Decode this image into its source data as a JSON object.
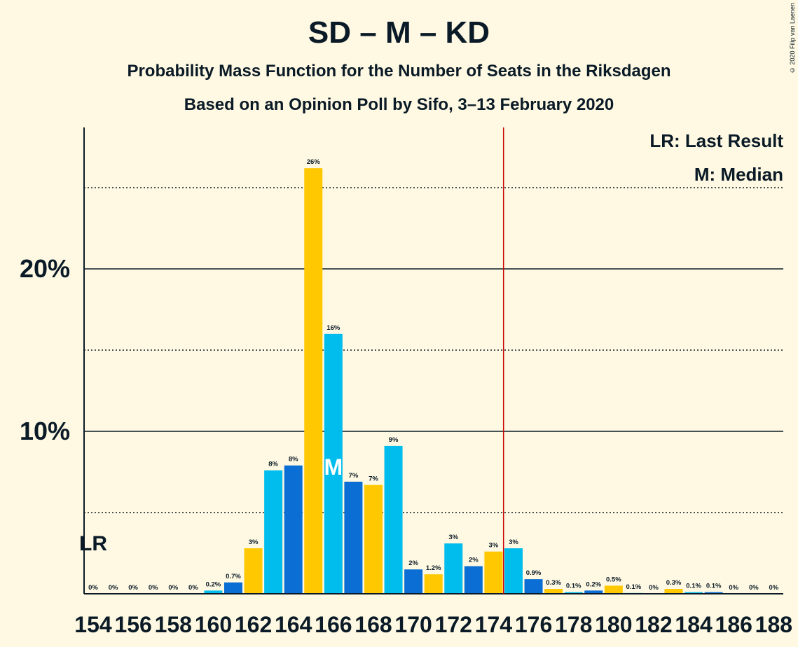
{
  "chart_data": {
    "type": "bar",
    "title": "SD – M – KD",
    "subtitle": "Probability Mass Function for the Number of Seats in the Riksdagen",
    "subtitle2": "Based on an Opinion Poll by Sifo, 3–13 February 2020",
    "copyright": "© 2020 Filip van Laenen",
    "legend": [
      "LR: Last Result",
      "M: Median"
    ],
    "last_result_label": "LR",
    "median_label": "M",
    "last_result_seat": 154,
    "median_seat": 166,
    "majority_seat": 174.5,
    "ylim": [
      0,
      28.5
    ],
    "y_ticks": [
      "10%",
      "20%"
    ],
    "x_tick_labels": [
      "154",
      "156",
      "158",
      "160",
      "162",
      "164",
      "166",
      "168",
      "170",
      "172",
      "174",
      "176",
      "178",
      "180",
      "182",
      "184",
      "186",
      "188"
    ],
    "colors": {
      "cyan": "#00BDED",
      "blue": "#0A6ED4",
      "yellow": "#FFC800",
      "majority_line": "#CC0000"
    },
    "bars": [
      {
        "seat": 154,
        "value": 0,
        "label": "0%",
        "color": "cyan"
      },
      {
        "seat": 155,
        "value": 0,
        "label": "0%",
        "color": "blue"
      },
      {
        "seat": 156,
        "value": 0,
        "label": "0%",
        "color": "yellow"
      },
      {
        "seat": 157,
        "value": 0,
        "label": "0%",
        "color": "cyan"
      },
      {
        "seat": 158,
        "value": 0,
        "label": "0%",
        "color": "blue"
      },
      {
        "seat": 159,
        "value": 0,
        "label": "0%",
        "color": "yellow"
      },
      {
        "seat": 160,
        "value": 0.2,
        "label": "0.2%",
        "color": "cyan"
      },
      {
        "seat": 161,
        "value": 0.7,
        "label": "0.7%",
        "color": "blue"
      },
      {
        "seat": 162,
        "value": 2.8,
        "label": "3%",
        "color": "yellow"
      },
      {
        "seat": 163,
        "value": 7.6,
        "label": "8%",
        "color": "cyan"
      },
      {
        "seat": 164,
        "value": 7.9,
        "label": "8%",
        "color": "blue"
      },
      {
        "seat": 165,
        "value": 26.2,
        "label": "26%",
        "color": "yellow"
      },
      {
        "seat": 166,
        "value": 16.0,
        "label": "16%",
        "color": "cyan"
      },
      {
        "seat": 167,
        "value": 6.9,
        "label": "7%",
        "color": "blue"
      },
      {
        "seat": 168,
        "value": 6.7,
        "label": "7%",
        "color": "yellow"
      },
      {
        "seat": 169,
        "value": 9.1,
        "label": "9%",
        "color": "cyan"
      },
      {
        "seat": 170,
        "value": 1.5,
        "label": "2%",
        "color": "blue"
      },
      {
        "seat": 171,
        "value": 1.2,
        "label": "1.2%",
        "color": "yellow"
      },
      {
        "seat": 172,
        "value": 3.1,
        "label": "3%",
        "color": "cyan"
      },
      {
        "seat": 173,
        "value": 1.7,
        "label": "2%",
        "color": "blue"
      },
      {
        "seat": 174,
        "value": 2.6,
        "label": "3%",
        "color": "yellow"
      },
      {
        "seat": 175,
        "value": 2.8,
        "label": "3%",
        "color": "cyan"
      },
      {
        "seat": 176,
        "value": 0.9,
        "label": "0.9%",
        "color": "blue"
      },
      {
        "seat": 177,
        "value": 0.3,
        "label": "0.3%",
        "color": "yellow"
      },
      {
        "seat": 178,
        "value": 0.1,
        "label": "0.1%",
        "color": "cyan"
      },
      {
        "seat": 179,
        "value": 0.2,
        "label": "0.2%",
        "color": "blue"
      },
      {
        "seat": 180,
        "value": 0.5,
        "label": "0.5%",
        "color": "yellow"
      },
      {
        "seat": 181,
        "value": 0.05,
        "label": "0.1%",
        "color": "cyan"
      },
      {
        "seat": 182,
        "value": 0,
        "label": "0%",
        "color": "blue"
      },
      {
        "seat": 183,
        "value": 0.3,
        "label": "0.3%",
        "color": "yellow"
      },
      {
        "seat": 184,
        "value": 0.1,
        "label": "0.1%",
        "color": "cyan"
      },
      {
        "seat": 185,
        "value": 0.1,
        "label": "0.1%",
        "color": "blue"
      },
      {
        "seat": 186,
        "value": 0,
        "label": "0%",
        "color": "yellow"
      },
      {
        "seat": 187,
        "value": 0,
        "label": "0%",
        "color": "cyan"
      },
      {
        "seat": 188,
        "value": 0,
        "label": "0%",
        "color": "blue"
      }
    ]
  }
}
